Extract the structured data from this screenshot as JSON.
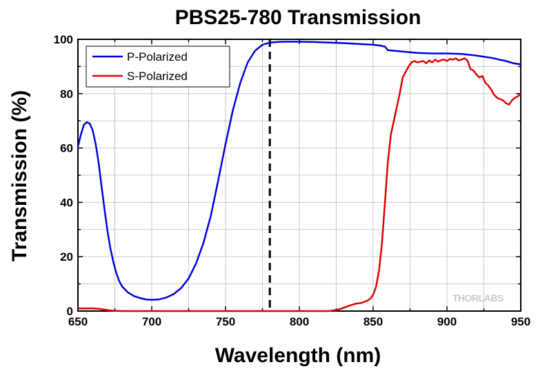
{
  "chart_data": {
    "type": "line",
    "title": "PBS25-780 Transmission",
    "xlabel": "Wavelength (nm)",
    "ylabel": "Transmission (%)",
    "xlim": [
      650,
      950
    ],
    "ylim": [
      0,
      100
    ],
    "xticks": [
      650,
      700,
      750,
      800,
      850,
      900,
      950
    ],
    "yticks": [
      0,
      20,
      40,
      60,
      80,
      100
    ],
    "grid": true,
    "legend_position": "top-left",
    "reference_line": {
      "x": 780,
      "style": "dashed",
      "color": "#000000"
    },
    "series": [
      {
        "name": "P-Polarized",
        "color": "#0000e0",
        "x": [
          650,
          652,
          654,
          656,
          658,
          660,
          662,
          664,
          666,
          668,
          670,
          672,
          674,
          676,
          678,
          680,
          684,
          688,
          692,
          696,
          700,
          705,
          710,
          715,
          720,
          725,
          730,
          735,
          740,
          745,
          750,
          755,
          760,
          765,
          770,
          775,
          780,
          785,
          790,
          800,
          810,
          820,
          830,
          840,
          850,
          855,
          858,
          860,
          870,
          880,
          890,
          900,
          910,
          920,
          930,
          940,
          945,
          950
        ],
        "y": [
          60.5,
          65,
          68.5,
          69.5,
          69,
          66.5,
          61.5,
          54.5,
          46,
          37.5,
          29.5,
          23,
          18,
          14,
          11,
          9,
          6.8,
          5.5,
          4.8,
          4.3,
          4.1,
          4.3,
          5,
          6.3,
          8.5,
          12,
          17.5,
          25,
          35,
          48,
          61.5,
          74,
          84,
          91.5,
          95.8,
          98,
          98.8,
          99,
          99.1,
          99.1,
          99,
          98.8,
          98.6,
          98.3,
          98,
          97.7,
          97.3,
          96,
          95.5,
          95,
          94.8,
          94.8,
          94.6,
          94,
          93.2,
          92,
          91.2,
          90.8
        ]
      },
      {
        "name": "S-Polarized",
        "color": "#e00000",
        "x": [
          650,
          655,
          660,
          664,
          668,
          672,
          675,
          680,
          700,
          750,
          800,
          820,
          826,
          830,
          834,
          838,
          842,
          846,
          848,
          850,
          852,
          854,
          856,
          858,
          860,
          862,
          864,
          866,
          868,
          870,
          872,
          874,
          876,
          878,
          880,
          882,
          884,
          886,
          888,
          890,
          892,
          894,
          896,
          898,
          900,
          902,
          904,
          906,
          908,
          910,
          912,
          914,
          916,
          918,
          920,
          922,
          924,
          926,
          928,
          930,
          932,
          934,
          936,
          938,
          940,
          942,
          944,
          946,
          948,
          950
        ],
        "y": [
          1,
          1,
          1,
          0.8,
          0.5,
          0.2,
          0.1,
          0,
          0,
          0,
          0,
          0,
          0.5,
          1.2,
          2,
          2.7,
          3,
          3.8,
          4.5,
          6,
          9,
          15,
          25,
          40,
          55,
          65,
          70,
          75,
          80,
          86,
          88,
          90,
          91.5,
          92,
          91.5,
          91.8,
          92,
          91.2,
          92.2,
          91.5,
          92.5,
          91.8,
          92.3,
          92.6,
          92,
          92.8,
          92.5,
          93,
          92.2,
          92.6,
          93,
          92.1,
          89,
          88.5,
          87,
          86,
          86.5,
          84,
          83,
          81.5,
          79.5,
          78.5,
          78,
          77.5,
          76.5,
          76,
          77.5,
          78.5,
          79,
          80
        ]
      }
    ]
  },
  "watermark_text": "THORLABS"
}
